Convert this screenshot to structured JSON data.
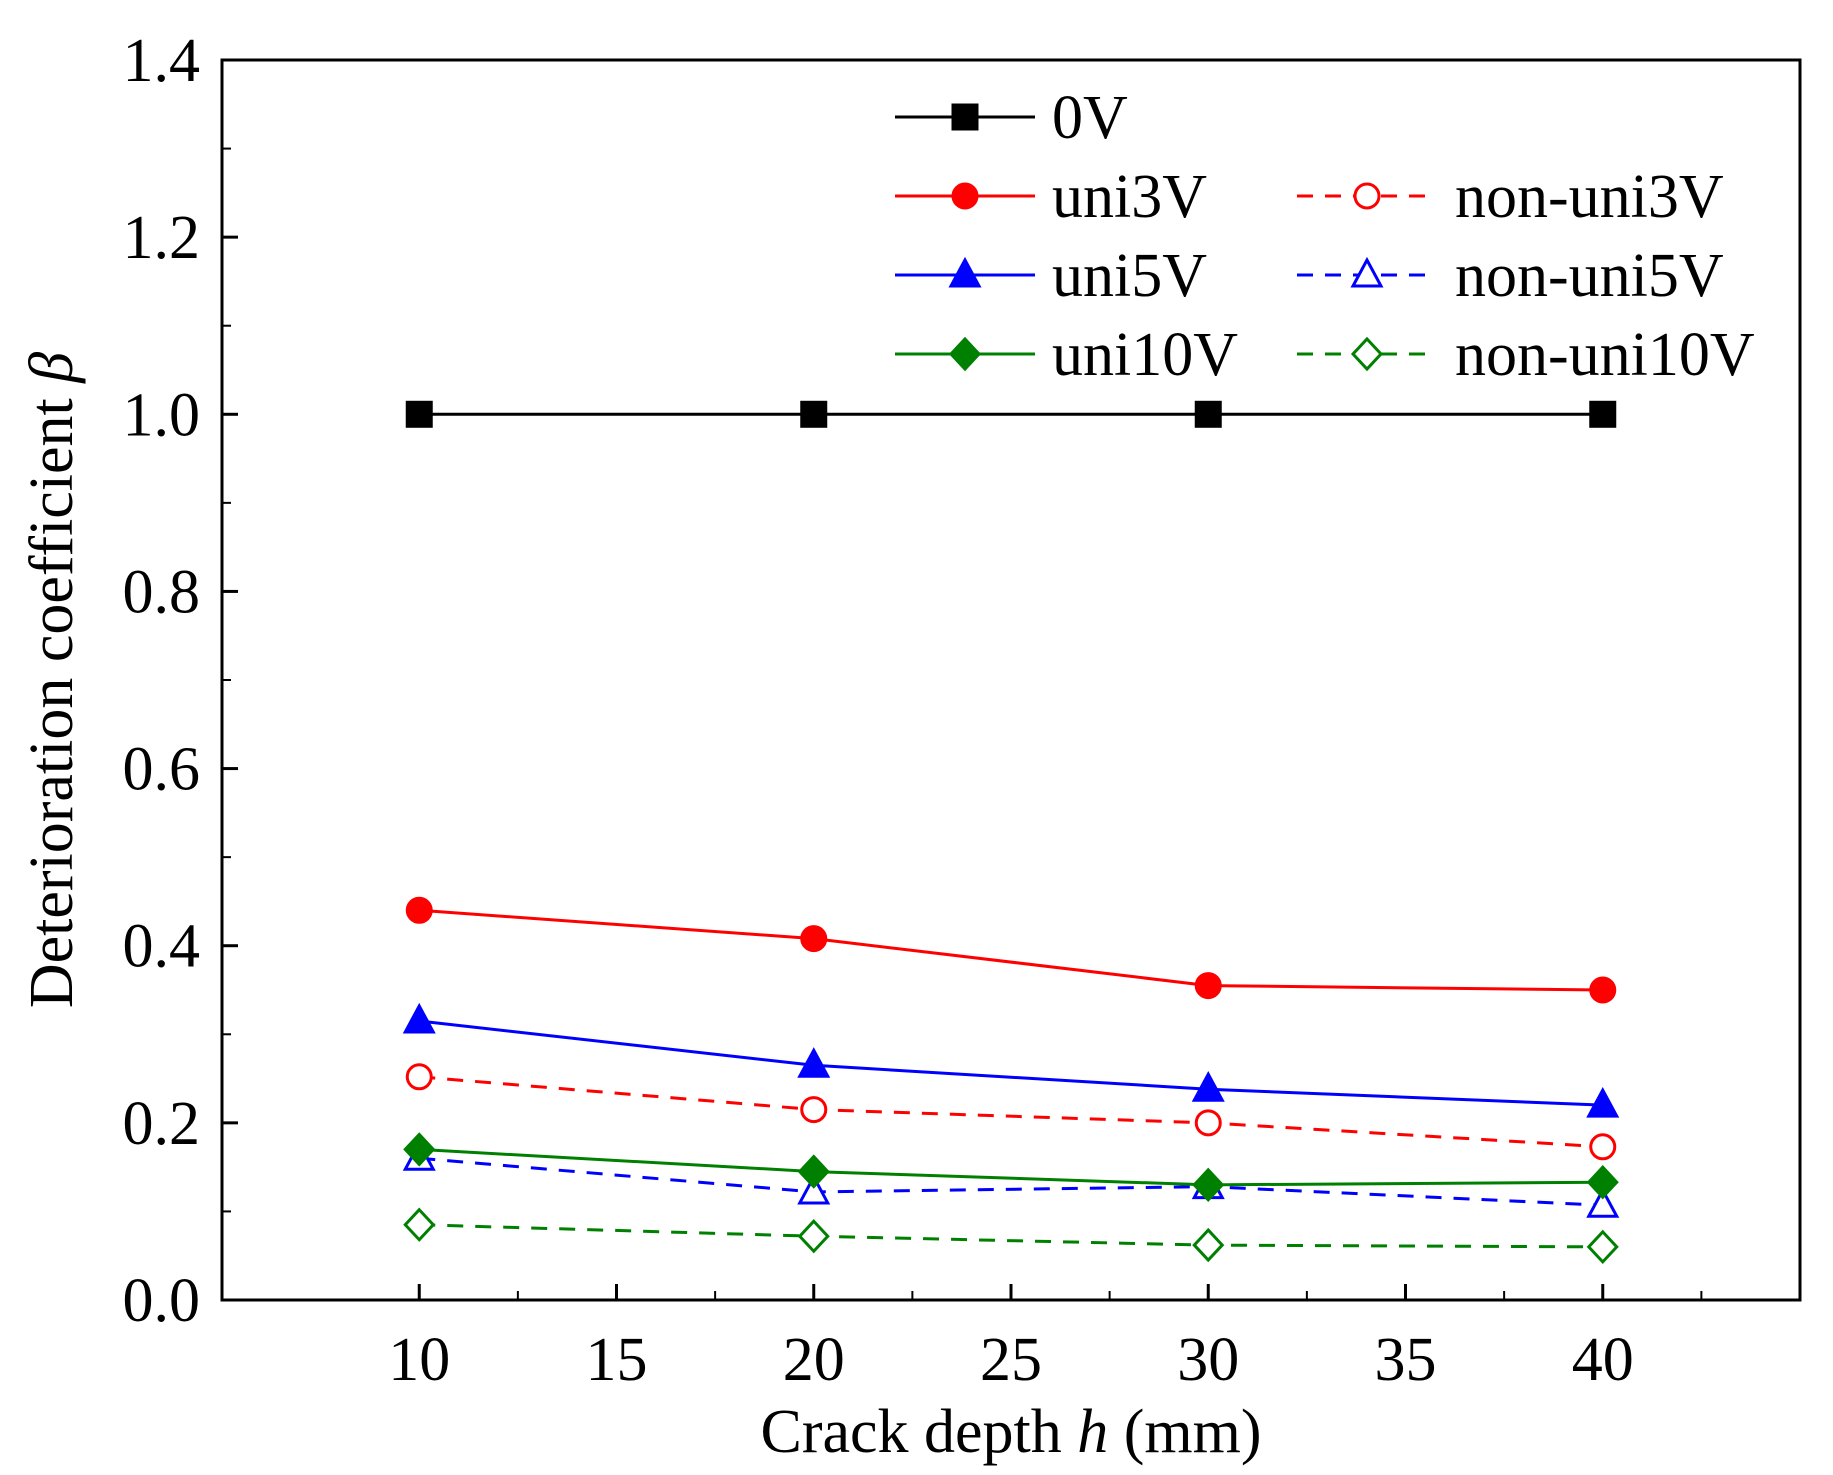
{
  "chart_data": {
    "type": "line",
    "title": "",
    "xlabel": "Crack depth ",
    "xlabel_var": "h",
    "xlabel_unit": " (mm)",
    "ylabel": "Deterioration coefficient ",
    "ylabel_var": "β",
    "xlim": [
      5,
      45
    ],
    "ylim": [
      0,
      1.4
    ],
    "xticks": [
      "10",
      "15",
      "20",
      "25",
      "30",
      "35",
      "40"
    ],
    "yticks": [
      "0.0",
      "0.2",
      "0.4",
      "0.6",
      "0.8",
      "1.0",
      "1.2",
      "1.4"
    ],
    "x": [
      10,
      20,
      30,
      40
    ],
    "legend_position": "top-right",
    "series": [
      {
        "name": "0V",
        "values": [
          1.0,
          1.0,
          1.0,
          1.0
        ],
        "color": "#000000",
        "marker": "square",
        "filled": true,
        "dashed": false
      },
      {
        "name": "uni3V",
        "values": [
          0.44,
          0.408,
          0.355,
          0.35
        ],
        "color": "#ff0000",
        "marker": "circle",
        "filled": true,
        "dashed": false
      },
      {
        "name": "non-uni3V",
        "values": [
          0.252,
          0.215,
          0.2,
          0.173
        ],
        "color": "#ff0000",
        "marker": "circle",
        "filled": false,
        "dashed": true
      },
      {
        "name": "uni5V",
        "values": [
          0.315,
          0.265,
          0.238,
          0.22
        ],
        "color": "#0000ff",
        "marker": "triangle",
        "filled": true,
        "dashed": false
      },
      {
        "name": "non-uni5V",
        "values": [
          0.16,
          0.122,
          0.128,
          0.107
        ],
        "color": "#0000ff",
        "marker": "triangle",
        "filled": false,
        "dashed": true
      },
      {
        "name": "uni10V",
        "values": [
          0.17,
          0.145,
          0.13,
          0.133
        ],
        "color": "#008000",
        "marker": "diamond",
        "filled": true,
        "dashed": false
      },
      {
        "name": "non-uni10V",
        "values": [
          0.085,
          0.072,
          0.062,
          0.06
        ],
        "color": "#008000",
        "marker": "diamond",
        "filled": false,
        "dashed": true
      }
    ]
  }
}
